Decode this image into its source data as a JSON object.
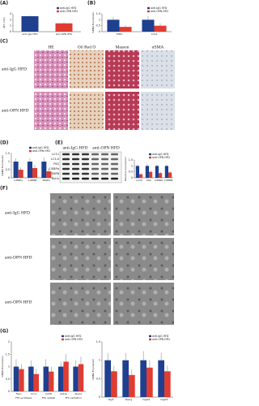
{
  "panels": {
    "letters": [
      "(A)",
      "(B)",
      "(C)",
      "(D)",
      "(E)",
      "(F)",
      "(G)"
    ]
  },
  "histology": {
    "columns": [
      "HE",
      "Oil Red O",
      "Masson",
      "αSMA"
    ],
    "rows": [
      "anti-IgG HFD",
      "anti-OPN HFD"
    ]
  },
  "blot": {
    "groups": [
      "anti-IgG HFD",
      "anti-OPN HFD"
    ],
    "bands": [
      "LC3-I",
      "LC3-II",
      "P62",
      "C/EBPα",
      "C/EBPβ",
      "Actin"
    ]
  },
  "em": {
    "rows": [
      "anti-IgG HFD",
      "anti-OPN HFD",
      "anti-OPN HFD"
    ]
  },
  "chart_data": [
    {
      "type": "bar",
      "y_label": "ALT (U/L)",
      "categories": [
        "anti-IgG HFD",
        "anti-OPN HFD"
      ],
      "values": [
        2.6,
        1.4
      ],
      "errors": [
        0.1,
        0.2
      ],
      "colors": [
        "#1f3f8f",
        "#e03c31"
      ],
      "legend": [
        "anti-IgG HFD",
        "anti-OPN HFD"
      ],
      "ylim": [
        0,
        3
      ],
      "yticks": [
        0,
        1,
        2,
        3
      ]
    },
    {
      "type": "bar",
      "y_label": "mRNA Expression",
      "categories": [
        "TNFα",
        "CCL2"
      ],
      "series": [
        {
          "name": "anti-IgG HFD",
          "color": "#1f3f8f",
          "values": [
            1,
            1
          ],
          "errors": [
            0.25,
            0.3
          ]
        },
        {
          "name": "anti-OPN HFD",
          "color": "#e03c31",
          "values": [
            0.4,
            0.5
          ],
          "errors": [
            0.15,
            0.2
          ]
        }
      ],
      "ylim": [
        0,
        1.5
      ],
      "yticks": [
        0,
        0.5,
        1,
        1.5
      ]
    },
    {
      "type": "bar",
      "y_label": "mRNA Expression",
      "categories": [
        "C/EBPα",
        "C/EBPβ",
        "PPARγ"
      ],
      "series": [
        {
          "name": "anti-IgG HFD",
          "color": "#1f3f8f",
          "values": [
            1,
            1,
            1
          ],
          "errors": [
            0.2,
            0.2,
            0.25
          ]
        },
        {
          "name": "anti-OPN HFD",
          "color": "#e03c31",
          "values": [
            0.5,
            0.6,
            0.4
          ],
          "errors": [
            0.15,
            0.2,
            0.15
          ]
        }
      ],
      "ylim": [
        0,
        1.5
      ],
      "yticks": [
        0,
        0.5,
        1,
        1.5
      ]
    },
    {
      "type": "bar",
      "y_label": "Relative expression",
      "categories": [
        "LC3II",
        "P62",
        "C/EBPα",
        "C/EBPβ"
      ],
      "series": [
        {
          "name": "anti-IgG HFD",
          "color": "#1f3f8f",
          "values": [
            1,
            1,
            1,
            1
          ],
          "errors": [
            0.1,
            0.15,
            0.1,
            0.1
          ]
        },
        {
          "name": "anti-OPN HFD",
          "color": "#e03c31",
          "values": [
            0.3,
            0.5,
            0.4,
            0.45
          ],
          "errors": [
            0.1,
            0.1,
            0.1,
            0.1
          ]
        }
      ],
      "ylim": [
        0,
        1.5
      ],
      "yticks": [
        0,
        0.5,
        1,
        1.5
      ]
    },
    {
      "type": "bar",
      "y_label": "mRNA Expression",
      "categories": [
        "Fasn",
        "Acc1",
        "Cd36",
        "Cpt1a",
        "Ppara"
      ],
      "x_group_labels": [
        "FFA synthesis",
        "FFA uptake",
        "FFA oxidation"
      ],
      "series": [
        {
          "name": "anti-IgG HFD",
          "color": "#1f3f8f",
          "values": [
            1,
            1,
            1,
            1,
            1
          ],
          "errors": [
            0.3,
            0.25,
            0.3,
            0.2,
            0.25
          ]
        },
        {
          "name": "anti-OPN HFD",
          "color": "#e03c31",
          "values": [
            0.9,
            0.7,
            0.8,
            1.2,
            1.1
          ],
          "errors": [
            0.2,
            0.2,
            0.2,
            0.3,
            0.3
          ]
        }
      ],
      "ylim": [
        0,
        2
      ],
      "yticks": [
        0,
        0.5,
        1,
        1.5,
        2
      ]
    },
    {
      "type": "bar",
      "y_label": "mRNA Expression",
      "categories": [
        "Atg5",
        "Pparg",
        "Dgat1",
        "Dgat2"
      ],
      "series": [
        {
          "name": "anti-IgG HFD",
          "color": "#1f3f8f",
          "values": [
            1,
            1,
            1,
            1
          ],
          "errors": [
            0.2,
            0.2,
            0.25,
            0.2
          ]
        },
        {
          "name": "anti-OPN HFD",
          "color": "#e03c31",
          "values": [
            0.7,
            0.6,
            0.8,
            0.7
          ],
          "errors": [
            0.15,
            0.15,
            0.2,
            0.15
          ]
        }
      ],
      "ylim": [
        0,
        1.5
      ],
      "yticks": [
        0,
        0.5,
        1,
        1.5
      ]
    }
  ]
}
